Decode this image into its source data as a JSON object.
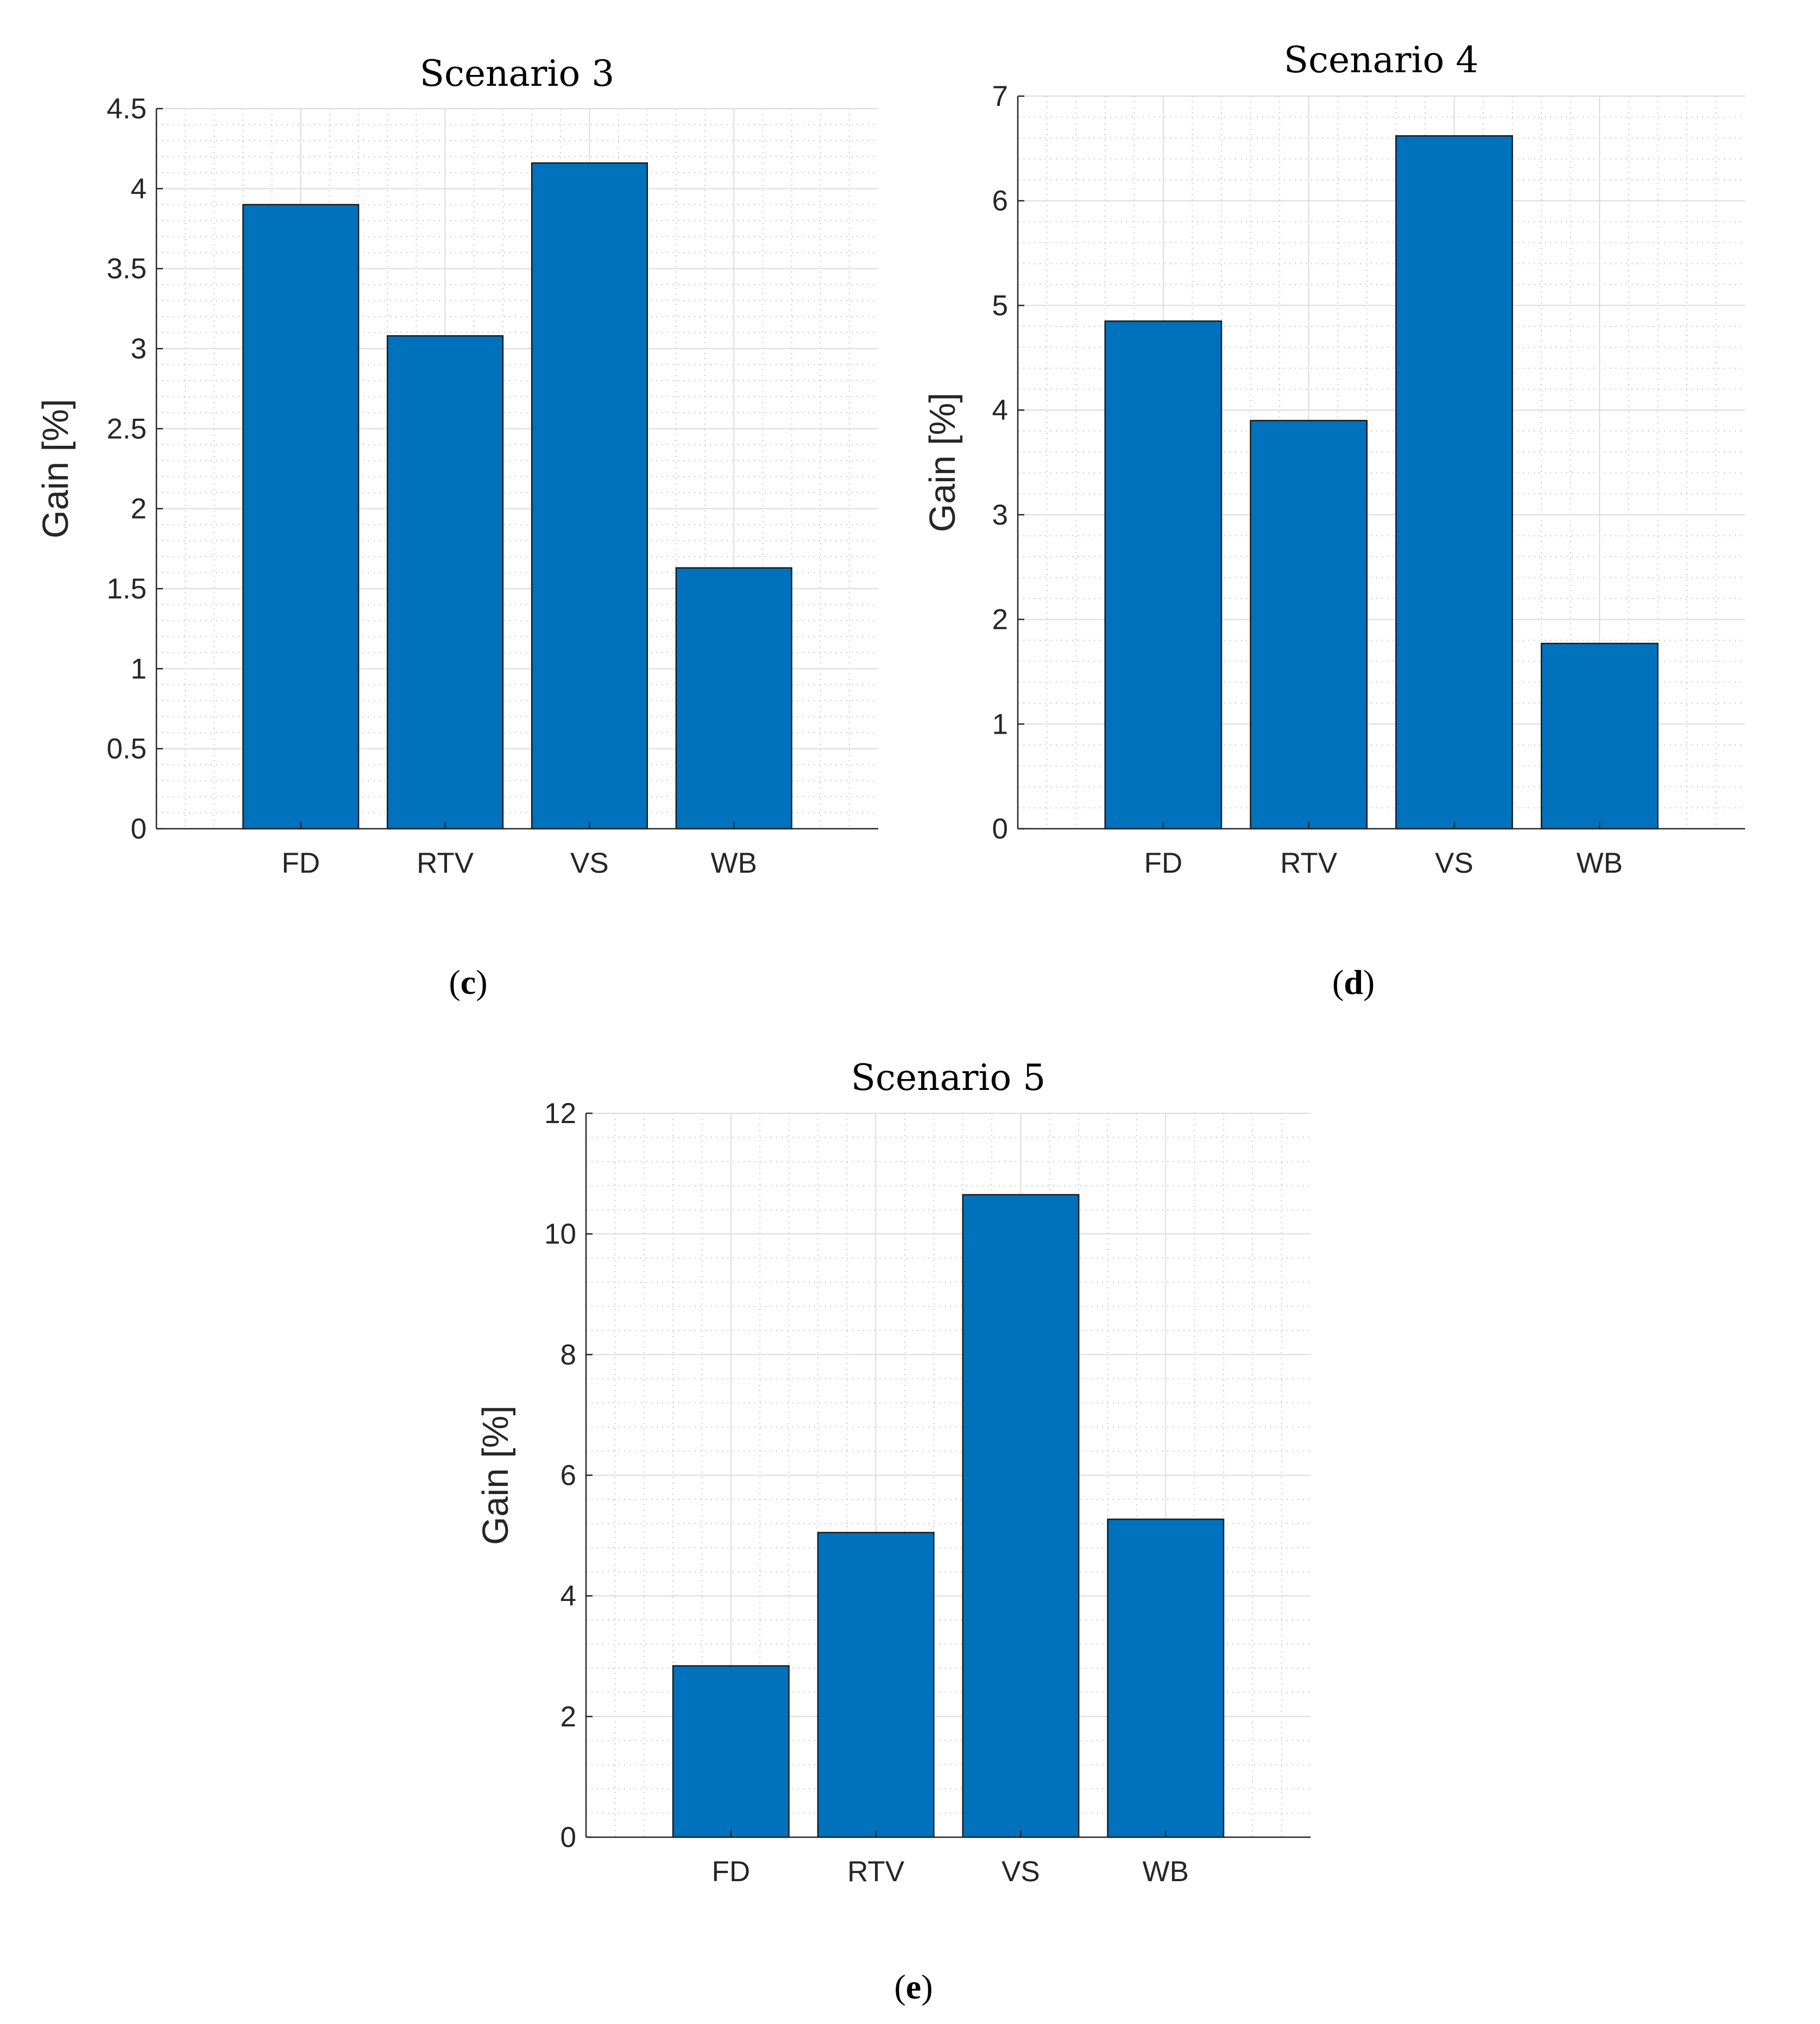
{
  "colors": {
    "bar_fill": "#0072BD",
    "bar_stroke": "#1a1a1a",
    "axis": "#262626",
    "grid_major": "#dcdcdc",
    "grid_minor": "#c8c8c8"
  },
  "chart_data": [
    {
      "id": "c",
      "type": "bar",
      "title": "Scenario 3",
      "xlabel": "",
      "ylabel": "Gain [%]",
      "categories": [
        "FD",
        "RTV",
        "VS",
        "WB"
      ],
      "values": [
        3.9,
        3.08,
        4.16,
        1.63
      ],
      "ylim": [
        0,
        4.5
      ],
      "yticks": [
        "0",
        "0.5",
        "1",
        "1.5",
        "2",
        "2.5",
        "3",
        "3.5",
        "4",
        "4.5"
      ],
      "grid": true,
      "minor_grid": true,
      "caption": "c"
    },
    {
      "id": "d",
      "type": "bar",
      "title": "Scenario 4",
      "xlabel": "",
      "ylabel": "Gain [%]",
      "categories": [
        "FD",
        "RTV",
        "VS",
        "WB"
      ],
      "values": [
        4.85,
        3.9,
        6.62,
        1.77
      ],
      "ylim": [
        0,
        7
      ],
      "yticks": [
        "0",
        "1",
        "2",
        "3",
        "4",
        "5",
        "6",
        "7"
      ],
      "grid": true,
      "minor_grid": true,
      "caption": "d"
    },
    {
      "id": "e",
      "type": "bar",
      "title": "Scenario 5",
      "xlabel": "",
      "ylabel": "Gain [%]",
      "categories": [
        "FD",
        "RTV",
        "VS",
        "WB"
      ],
      "values": [
        2.84,
        5.05,
        10.65,
        5.27
      ],
      "ylim": [
        0,
        12
      ],
      "yticks": [
        "0",
        "2",
        "4",
        "6",
        "8",
        "10",
        "12"
      ],
      "grid": true,
      "minor_grid": true,
      "caption": "e"
    }
  ]
}
